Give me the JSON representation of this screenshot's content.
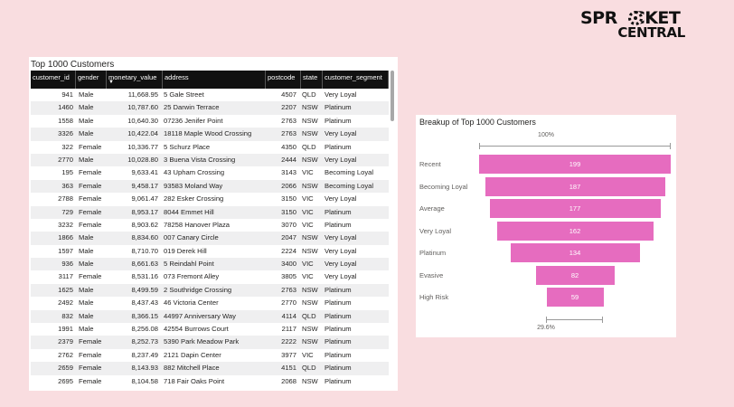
{
  "logo": {
    "line1": "SPR",
    "line1b": "CKET",
    "line2": "CENTRAL"
  },
  "table": {
    "title": "Top 1000 Customers",
    "columns": [
      "customer_id",
      "gender",
      "monetary_value",
      "address",
      "postcode",
      "state",
      "customer_segment"
    ],
    "rows": [
      [
        "941",
        "Male",
        "11,668.95",
        "5 Gale Street",
        "4507",
        "QLD",
        "Very Loyal"
      ],
      [
        "1460",
        "Male",
        "10,787.60",
        "25 Darwin Terrace",
        "2207",
        "NSW",
        "Platinum"
      ],
      [
        "1558",
        "Male",
        "10,640.30",
        "07236 Jenifer Point",
        "2763",
        "NSW",
        "Platinum"
      ],
      [
        "3326",
        "Male",
        "10,422.04",
        "18118 Maple Wood Crossing",
        "2763",
        "NSW",
        "Very Loyal"
      ],
      [
        "322",
        "Female",
        "10,336.77",
        "5 Schurz Place",
        "4350",
        "QLD",
        "Platinum"
      ],
      [
        "2770",
        "Male",
        "10,028.80",
        "3 Buena Vista Crossing",
        "2444",
        "NSW",
        "Very Loyal"
      ],
      [
        "195",
        "Female",
        "9,633.41",
        "43 Upham Crossing",
        "3143",
        "VIC",
        "Becoming Loyal"
      ],
      [
        "363",
        "Female",
        "9,458.17",
        "93583 Moland Way",
        "2066",
        "NSW",
        "Becoming Loyal"
      ],
      [
        "2788",
        "Female",
        "9,061.47",
        "282 Esker Crossing",
        "3150",
        "VIC",
        "Very Loyal"
      ],
      [
        "729",
        "Female",
        "8,953.17",
        "8044 Emmet Hill",
        "3150",
        "VIC",
        "Platinum"
      ],
      [
        "3232",
        "Female",
        "8,903.62",
        "78258 Hanover Plaza",
        "3070",
        "VIC",
        "Platinum"
      ],
      [
        "1866",
        "Male",
        "8,834.60",
        "007 Canary Circle",
        "2047",
        "NSW",
        "Very Loyal"
      ],
      [
        "1597",
        "Male",
        "8,710.70",
        "019 Derek Hill",
        "2224",
        "NSW",
        "Very Loyal"
      ],
      [
        "936",
        "Male",
        "8,661.63",
        "5 Reindahl Point",
        "3400",
        "VIC",
        "Very Loyal"
      ],
      [
        "3117",
        "Female",
        "8,531.16",
        "073 Fremont Alley",
        "3805",
        "VIC",
        "Very Loyal"
      ],
      [
        "1625",
        "Male",
        "8,499.59",
        "2 Southridge Crossing",
        "2763",
        "NSW",
        "Platinum"
      ],
      [
        "2492",
        "Male",
        "8,437.43",
        "46 Victoria Center",
        "2770",
        "NSW",
        "Platinum"
      ],
      [
        "832",
        "Male",
        "8,366.15",
        "44997 Anniversary Way",
        "4114",
        "QLD",
        "Platinum"
      ],
      [
        "1991",
        "Male",
        "8,256.08",
        "42554 Burrows Court",
        "2117",
        "NSW",
        "Platinum"
      ],
      [
        "2379",
        "Female",
        "8,252.73",
        "5390 Park Meadow Park",
        "2222",
        "NSW",
        "Platinum"
      ],
      [
        "2762",
        "Female",
        "8,237.49",
        "2121 Dapin Center",
        "3977",
        "VIC",
        "Platinum"
      ],
      [
        "2659",
        "Female",
        "8,143.93",
        "882 Mitchell Place",
        "4151",
        "QLD",
        "Platinum"
      ],
      [
        "2695",
        "Female",
        "8,104.58",
        "718 Fair Oaks Point",
        "2068",
        "NSW",
        "Platinum"
      ]
    ]
  },
  "funnel": {
    "title": "Breakup of Top 1000 Customers",
    "top_percent": "100%",
    "bottom_percent": "29.6%",
    "bar_color": "#e66cbf"
  },
  "chart_data": {
    "type": "bar",
    "subtype": "funnel",
    "title": "Breakup of Top 1000 Customers",
    "categories": [
      "Recent",
      "Becoming Loyal",
      "Average",
      "Very Loyal",
      "Platinum",
      "Evasive",
      "High Risk"
    ],
    "values": [
      199,
      187,
      177,
      162,
      134,
      82,
      59
    ],
    "top_label": "100%",
    "bottom_label": "29.6%",
    "color": "#e66cbf"
  }
}
